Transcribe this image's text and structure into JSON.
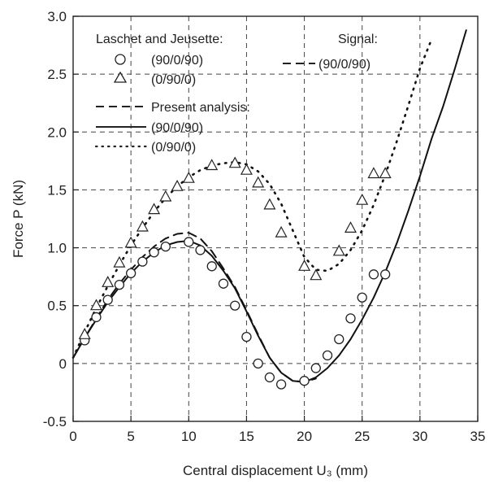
{
  "chart_data": {
    "type": "line",
    "title": "",
    "xlabel": "Central displacement U₃ (mm)",
    "ylabel": "Force P (kN)",
    "xlim": [
      0,
      35
    ],
    "ylim": [
      -0.5,
      3.0
    ],
    "xticks": [
      "0",
      "5",
      "10",
      "15",
      "20",
      "25",
      "30",
      "35"
    ],
    "yticks": [
      "-0.5",
      "0",
      "0.5",
      "1.0",
      "1.5",
      "2.0",
      "2.5",
      "3.0"
    ],
    "grid": true,
    "legend_groups": [
      {
        "heading": "Laschet and Jeusette:",
        "entries": [
          "(90/0/90)",
          "(0/90/0)"
        ]
      },
      {
        "heading": "Present analysis:",
        "entries": [
          "(90/0/90)",
          "(0/90/0)"
        ]
      },
      {
        "heading": "Signal:",
        "entries": [
          "(90/0/90)"
        ]
      }
    ],
    "series": [
      {
        "key": "present_90_0_90_solid",
        "style": "solid",
        "color": "#111111",
        "x": [
          0,
          1,
          2,
          3,
          4,
          5,
          6,
          7,
          8,
          9,
          10,
          11,
          12,
          13,
          14,
          15,
          16,
          17,
          18,
          19,
          20,
          21,
          22,
          23,
          24,
          25,
          26,
          27,
          28,
          29,
          30,
          31,
          32,
          33,
          34
        ],
        "y": [
          0.05,
          0.22,
          0.38,
          0.53,
          0.66,
          0.78,
          0.88,
          0.96,
          1.02,
          1.05,
          1.06,
          1.02,
          0.93,
          0.8,
          0.65,
          0.45,
          0.24,
          0.05,
          -0.08,
          -0.15,
          -0.16,
          -0.12,
          -0.04,
          0.07,
          0.21,
          0.38,
          0.57,
          0.79,
          1.04,
          1.32,
          1.62,
          1.94,
          2.22,
          2.54,
          2.88
        ]
      },
      {
        "key": "present_90_0_90_dashed",
        "style": "dashed",
        "color": "#111111",
        "x": [
          0,
          1,
          2,
          3,
          4,
          5,
          6,
          7,
          8,
          9,
          10,
          11,
          12,
          13,
          14,
          15,
          16,
          17,
          18,
          19,
          20,
          21
        ],
        "y": [
          0.05,
          0.22,
          0.39,
          0.55,
          0.69,
          0.81,
          0.92,
          1.01,
          1.08,
          1.12,
          1.13,
          1.08,
          0.97,
          0.82,
          0.66,
          0.46,
          0.25,
          0.05,
          -0.08,
          -0.15,
          -0.16,
          -0.13
        ]
      },
      {
        "key": "present_0_90_0_dotted",
        "style": "dotted",
        "color": "#111111",
        "x": [
          0,
          1,
          2,
          3,
          4,
          5,
          6,
          7,
          8,
          9,
          10,
          11,
          12,
          13,
          14,
          15,
          16,
          17,
          18,
          19,
          20,
          21,
          22,
          23,
          24,
          25,
          26,
          27,
          28,
          29,
          30,
          31
        ],
        "y": [
          0.05,
          0.27,
          0.48,
          0.67,
          0.85,
          1.02,
          1.17,
          1.31,
          1.43,
          1.53,
          1.61,
          1.67,
          1.71,
          1.73,
          1.74,
          1.72,
          1.66,
          1.55,
          1.38,
          1.15,
          0.92,
          0.81,
          0.8,
          0.86,
          0.98,
          1.15,
          1.37,
          1.63,
          1.92,
          2.23,
          2.55,
          2.8
        ]
      }
    ],
    "markers": [
      {
        "key": "laschet_90_0_90",
        "symbol": "circle",
        "x": [
          1,
          2,
          3,
          4,
          5,
          6,
          7,
          8,
          10,
          11,
          12,
          13,
          14,
          15,
          16,
          17,
          18,
          20,
          21,
          22,
          23,
          24,
          25,
          26,
          27
        ],
        "y": [
          0.2,
          0.4,
          0.55,
          0.68,
          0.78,
          0.88,
          0.96,
          1.01,
          1.05,
          0.98,
          0.84,
          0.69,
          0.5,
          0.23,
          0.0,
          -0.12,
          -0.18,
          -0.15,
          -0.04,
          0.07,
          0.21,
          0.39,
          0.57,
          0.77,
          0.77
        ]
      },
      {
        "key": "laschet_0_90_0",
        "symbol": "triangle",
        "x": [
          1,
          2,
          3,
          4,
          5,
          6,
          7,
          8,
          9,
          10,
          12,
          14,
          15,
          16,
          17,
          18,
          20,
          21,
          23,
          24,
          25,
          26,
          27
        ],
        "y": [
          0.25,
          0.5,
          0.7,
          0.87,
          1.04,
          1.18,
          1.33,
          1.44,
          1.53,
          1.6,
          1.71,
          1.73,
          1.67,
          1.56,
          1.37,
          1.13,
          0.84,
          0.76,
          0.97,
          1.17,
          1.41,
          1.64,
          1.64
        ]
      }
    ]
  }
}
